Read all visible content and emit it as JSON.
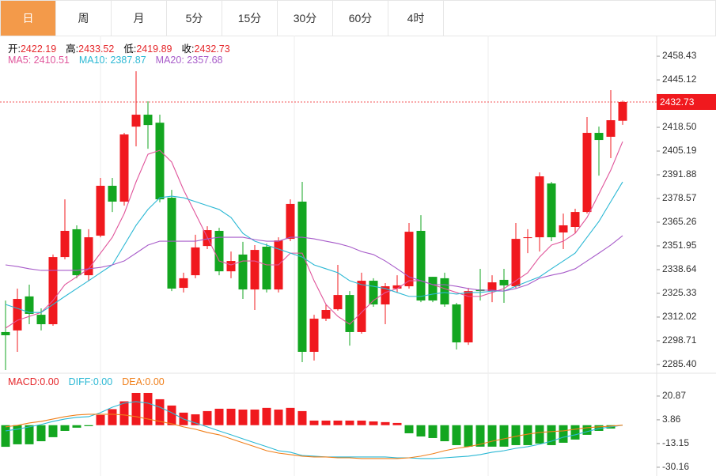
{
  "tabs": [
    "日",
    "周",
    "月",
    "5分",
    "15分",
    "30分",
    "60分",
    "4时"
  ],
  "active_tab": 0,
  "chart_data": [
    {
      "type": "candlestick",
      "info_labels": [
        "开:",
        "高:",
        "低:",
        "收:"
      ],
      "up_color": "#f0191e",
      "down_color": "#13a620",
      "candles": {
        "open": [
          2303.6,
          2304.5,
          2323.6,
          2313.3,
          2308.0,
          2345.7,
          2361.3,
          2335.5,
          2357.7,
          2385.7,
          2376.8,
          2418.9,
          2425.6,
          2421.1,
          2379.0,
          2328.4,
          2335.5,
          2351.9,
          2360.4,
          2337.7,
          2347.1,
          2327.5,
          2351.5,
          2327.5,
          2355.9,
          2376.8,
          2292.5,
          2311.1,
          2316.4,
          2324.4,
          2303.6,
          2332.4,
          2319.1,
          2328.0,
          2329.3,
          2360.4,
          2334.6,
          2333.8,
          2319.1,
          2297.8,
          2327.5,
          2326.6,
          2332.9,
          2329.3,
          2356.4,
          2356.8,
          2387.0,
          2359.5,
          2362.6,
          2371.0,
          2415.4,
          2413.2,
          2422.19
        ],
        "high": [
          2321.3,
          2328.0,
          2330.2,
          2316.9,
          2347.1,
          2378.1,
          2363.5,
          2361.3,
          2390.1,
          2390.1,
          2415.4,
          2450.0,
          2433.1,
          2425.6,
          2383.4,
          2336.9,
          2358.2,
          2363.0,
          2362.1,
          2348.8,
          2354.2,
          2352.4,
          2353.3,
          2356.8,
          2378.1,
          2387.9,
          2313.3,
          2319.1,
          2341.3,
          2326.6,
          2336.9,
          2333.8,
          2331.1,
          2335.5,
          2364.8,
          2369.2,
          2334.6,
          2336.9,
          2320.0,
          2328.4,
          2339.1,
          2335.5,
          2339.1,
          2364.8,
          2361.3,
          2393.2,
          2387.9,
          2370.1,
          2372.8,
          2424.3,
          2418.9,
          2439.4,
          2433.52
        ],
        "low": [
          2282.3,
          2292.5,
          2308.0,
          2304.5,
          2307.1,
          2344.4,
          2333.8,
          2332.4,
          2356.8,
          2371.0,
          2374.6,
          2407.8,
          2406.5,
          2376.4,
          2326.6,
          2325.8,
          2333.8,
          2350.2,
          2335.5,
          2333.8,
          2322.2,
          2316.0,
          2325.8,
          2325.8,
          2354.6,
          2286.7,
          2287.6,
          2309.8,
          2315.6,
          2296.0,
          2302.7,
          2317.8,
          2308.0,
          2325.8,
          2328.0,
          2320.4,
          2320.4,
          2317.8,
          2293.8,
          2296.4,
          2321.3,
          2320.4,
          2320.0,
          2328.4,
          2347.9,
          2348.8,
          2354.6,
          2350.2,
          2359.0,
          2370.1,
          2391.4,
          2401.2,
          2419.89
        ],
        "close": [
          2301.8,
          2322.2,
          2313.8,
          2308.0,
          2345.7,
          2360.4,
          2335.5,
          2356.8,
          2385.7,
          2376.8,
          2414.5,
          2425.6,
          2419.8,
          2378.1,
          2328.0,
          2333.8,
          2351.1,
          2360.8,
          2337.7,
          2343.5,
          2327.5,
          2349.7,
          2327.5,
          2355.0,
          2375.5,
          2292.5,
          2311.1,
          2316.0,
          2324.4,
          2303.6,
          2332.4,
          2319.1,
          2329.3,
          2329.8,
          2359.9,
          2321.3,
          2321.3,
          2319.1,
          2297.8,
          2326.6,
          2326.6,
          2331.5,
          2329.8,
          2355.9,
          2356.8,
          2391.0,
          2356.8,
          2363.5,
          2371.0,
          2415.4,
          2411.4,
          2422.5,
          2432.73
        ]
      },
      "series": [
        {
          "name": "MA5:",
          "color": "#e0559b",
          "values": [
            2305.8,
            2310.2,
            2312.4,
            2314.6,
            2321.3,
            2330.2,
            2334.6,
            2339.1,
            2347.9,
            2356.8,
            2370.1,
            2387.9,
            2403.4,
            2405.6,
            2399.0,
            2383.4,
            2370.1,
            2356.8,
            2343.5,
            2341.3,
            2343.5,
            2343.5,
            2341.3,
            2341.3,
            2347.9,
            2347.9,
            2332.4,
            2319.1,
            2312.4,
            2308.0,
            2314.6,
            2321.3,
            2325.8,
            2328.0,
            2332.4,
            2332.4,
            2330.2,
            2328.0,
            2325.8,
            2323.6,
            2323.6,
            2325.8,
            2328.0,
            2332.4,
            2336.9,
            2345.7,
            2352.4,
            2354.6,
            2359.0,
            2367.9,
            2381.2,
            2394.5,
            2410.51
          ]
        },
        {
          "name": "MA10:",
          "color": "#2bb8d4",
          "values": [
            2319.1,
            2316.9,
            2314.6,
            2314.6,
            2319.1,
            2323.6,
            2328.0,
            2332.4,
            2336.9,
            2341.3,
            2352.4,
            2363.5,
            2372.4,
            2379.0,
            2379.9,
            2379.0,
            2376.8,
            2374.6,
            2372.4,
            2367.9,
            2359.0,
            2354.6,
            2352.4,
            2350.2,
            2347.9,
            2345.7,
            2341.3,
            2339.1,
            2336.9,
            2332.4,
            2330.2,
            2329.3,
            2328.0,
            2325.8,
            2323.6,
            2323.6,
            2324.9,
            2325.8,
            2324.9,
            2325.8,
            2325.8,
            2326.6,
            2326.6,
            2329.3,
            2332.0,
            2334.6,
            2339.1,
            2343.5,
            2347.9,
            2356.8,
            2365.7,
            2376.8,
            2387.87
          ]
        },
        {
          "name": "MA20:",
          "color": "#a75bc9",
          "values": [
            2341.3,
            2340.4,
            2339.1,
            2338.2,
            2338.2,
            2338.2,
            2338.2,
            2339.1,
            2339.9,
            2341.3,
            2343.5,
            2347.9,
            2352.4,
            2354.6,
            2354.6,
            2354.6,
            2354.6,
            2355.9,
            2356.8,
            2356.8,
            2356.8,
            2355.5,
            2354.6,
            2354.6,
            2356.8,
            2356.8,
            2355.9,
            2354.6,
            2353.3,
            2351.5,
            2348.8,
            2347.1,
            2343.5,
            2339.1,
            2334.6,
            2332.4,
            2330.2,
            2330.2,
            2329.3,
            2328.0,
            2327.1,
            2327.1,
            2326.6,
            2328.0,
            2330.2,
            2333.8,
            2335.5,
            2336.9,
            2339.1,
            2343.5,
            2347.9,
            2352.4,
            2357.68
          ]
        }
      ],
      "ylim": [
        2280.5,
        2470.0
      ],
      "yticks": [
        2458.43,
        2445.12,
        {
          "value": 2418.5,
          "label": "2418.50"
        },
        2405.19,
        2391.88,
        2378.57,
        2365.26,
        2351.95,
        2338.64,
        2325.33,
        2312.02,
        2298.71,
        {
          "value": 2285.4,
          "label": "2285.40"
        }
      ]
    },
    {
      "type": "macd",
      "series": [
        {
          "name": "MACD:",
          "color": "#e5262a",
          "value_label": "0.00",
          "values": [
            -15.5,
            -13.7,
            -13.7,
            -11.5,
            -8.6,
            -4.1,
            -1.8,
            -0.7,
            7.3,
            11.5,
            17.1,
            23.1,
            23.1,
            18.6,
            14.1,
            9.0,
            7.8,
            10.1,
            11.8,
            11.8,
            11.2,
            11.2,
            12.4,
            11.2,
            12.4,
            10.1,
            3.3,
            3.3,
            3.3,
            3.3,
            3.3,
            2.7,
            2.2,
            1.6,
            -5.8,
            -8.1,
            -9.2,
            -11.5,
            -14.3,
            -15.4,
            -15.4,
            -15.4,
            -15.4,
            -14.3,
            -14.3,
            -13.2,
            -14.3,
            -12.6,
            -10.3,
            -6.9,
            -4.1,
            -2.4,
            0.0
          ]
        },
        {
          "name": "DIFF:",
          "color": "#2bb8d4",
          "value_label": "0.00",
          "values": [
            -4.1,
            -2.9,
            -1.2,
            0.5,
            2.7,
            4.4,
            5.6,
            6.1,
            9.0,
            12.9,
            15.8,
            16.9,
            15.8,
            12.9,
            9.0,
            4.4,
            1.6,
            -1.2,
            -4.1,
            -6.9,
            -9.8,
            -12.6,
            -15.4,
            -18.3,
            -19.4,
            -21.7,
            -22.2,
            -22.8,
            -22.8,
            -22.8,
            -22.8,
            -22.8,
            -22.8,
            -23.4,
            -23.4,
            -23.9,
            -23.9,
            -23.4,
            -22.8,
            -22.2,
            -21.1,
            -19.4,
            -18.3,
            -16.6,
            -15.4,
            -13.7,
            -11.5,
            -8.6,
            -6.9,
            -4.6,
            -2.4,
            -1.2,
            0.0
          ]
        },
        {
          "name": "DEA:",
          "color": "#f07f1a",
          "value_label": "0.00",
          "values": [
            -1.2,
            -0.1,
            1.6,
            2.7,
            4.4,
            6.1,
            7.3,
            7.8,
            7.8,
            7.8,
            7.3,
            6.1,
            4.4,
            2.7,
            1.0,
            -1.2,
            -2.9,
            -5.2,
            -6.9,
            -9.8,
            -12.6,
            -15.4,
            -18.3,
            -20.0,
            -21.1,
            -22.2,
            -22.8,
            -22.8,
            -23.4,
            -23.4,
            -23.9,
            -23.9,
            -23.9,
            -23.9,
            -23.4,
            -22.2,
            -20.5,
            -18.3,
            -16.6,
            -15.4,
            -13.7,
            -11.5,
            -9.8,
            -8.0,
            -6.4,
            -5.2,
            -4.6,
            -4.1,
            -2.9,
            -1.8,
            -1.2,
            -0.7,
            0.0
          ]
        }
      ],
      "ylim": [
        -35.3,
        35.0
      ],
      "yticks": [
        20.87,
        3.86,
        -13.15,
        -30.16
      ]
    }
  ]
}
